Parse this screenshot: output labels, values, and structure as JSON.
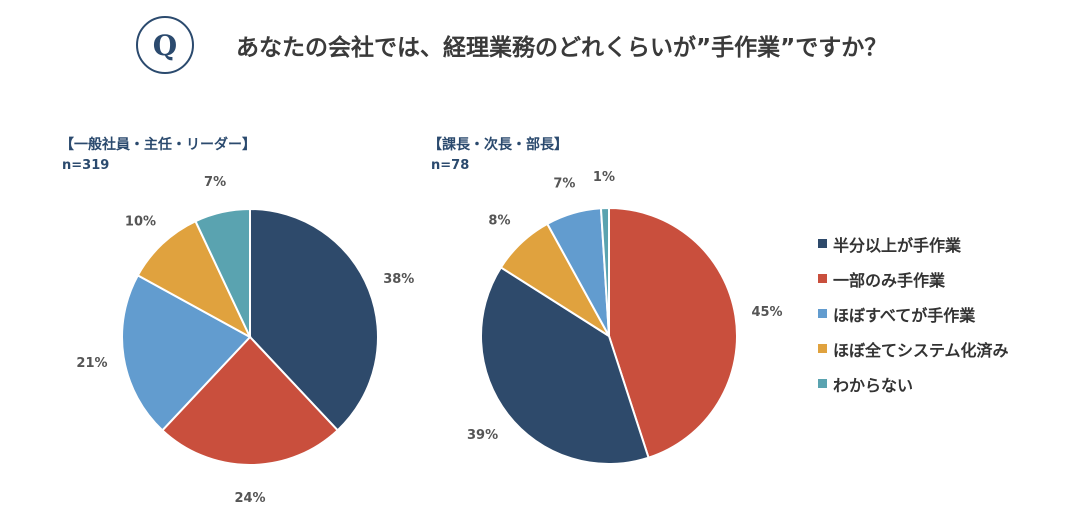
{
  "header": {
    "badge": "Q",
    "question": "あなたの会社では、経理業務のどれくらいが”手作業”ですか？"
  },
  "groups": [
    {
      "title": "【一般社員・主任・リーダー】",
      "n": "n=319"
    },
    {
      "title": "【課長・次長・部長】",
      "n": "n=78"
    }
  ],
  "legend": [
    {
      "label": "半分以上が手作業",
      "color": "#2e4a6b"
    },
    {
      "label": "一部のみ手作業",
      "color": "#c94f3d"
    },
    {
      "label": "ほぼすべてが手作業",
      "color": "#629ccf"
    },
    {
      "label": "ほぼ全てシステム化済み",
      "color": "#e0a23e"
    },
    {
      "label": "わからない",
      "color": "#5aa3b0"
    }
  ],
  "chart_data": [
    {
      "type": "pie",
      "title": "【一般社員・主任・リーダー】",
      "subtitle": "n=319",
      "categories": [
        "半分以上が手作業",
        "一部のみ手作業",
        "ほぼすべてが手作業",
        "ほぼ全てシステム化済み",
        "わからない"
      ],
      "values": [
        38,
        24,
        21,
        10,
        7
      ],
      "labels": [
        "38%",
        "24%",
        "21%",
        "10%",
        "7%"
      ],
      "colors": [
        "#2e4a6b",
        "#c94f3d",
        "#629ccf",
        "#e0a23e",
        "#5aa3b0"
      ]
    },
    {
      "type": "pie",
      "title": "【課長・次長・部長】",
      "subtitle": "n=78",
      "categories": [
        "一部のみ手作業",
        "半分以上が手作業",
        "ほぼ全てシステム化済み",
        "ほぼすべてが手作業",
        "わからない"
      ],
      "values": [
        45,
        39,
        8,
        7,
        1
      ],
      "labels": [
        "45%",
        "39%",
        "8%",
        "7%",
        "1%"
      ],
      "colors": [
        "#c94f3d",
        "#2e4a6b",
        "#e0a23e",
        "#629ccf",
        "#5aa3b0"
      ]
    }
  ]
}
